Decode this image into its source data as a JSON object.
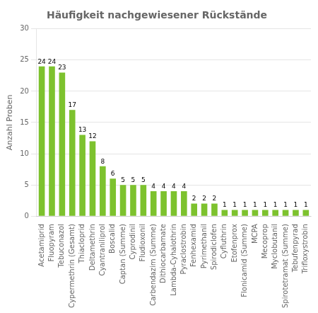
{
  "chart_data": {
    "type": "bar",
    "title": "Häufigkeit nachgewiesener Rückstände",
    "ylabel": "Anzahl Proben",
    "categories": [
      "Acetamiprid",
      "Fluopyram",
      "Tebuconazol",
      "Cypermethrin (Gesamt)",
      "Thiacloprid",
      "Deltamethrin",
      "Cyantraniliprol",
      "Boscalid",
      "Captan (Summe)",
      "Cyprodinil",
      "Fludioxonil",
      "Carbendazim (Summe)",
      "Dithiocarbamate",
      "Lambda-Cyhalothrin",
      "Pyraclostrobin",
      "Fenhexamid",
      "Pyrimethanil",
      "Spirodiclofen",
      "Cyfluthrin",
      "Etofenprox",
      "Flonicamid (Summe)",
      "MCPA",
      "Mecoprop",
      "Myclobutanil",
      "Spirotetramat (Summe)",
      "Tebufenpyrad",
      "Trifloxystrobin"
    ],
    "values": [
      24,
      24,
      23,
      17,
      13,
      12,
      8,
      6,
      5,
      5,
      5,
      4,
      4,
      4,
      4,
      2,
      2,
      2,
      1,
      1,
      1,
      1,
      1,
      1,
      1,
      1,
      1
    ],
    "color": "#7dc22e",
    "ylim": [
      0,
      30
    ],
    "yticks": [
      0,
      5,
      10,
      15,
      20,
      25,
      30
    ],
    "grid": true,
    "data_labels": true
  }
}
